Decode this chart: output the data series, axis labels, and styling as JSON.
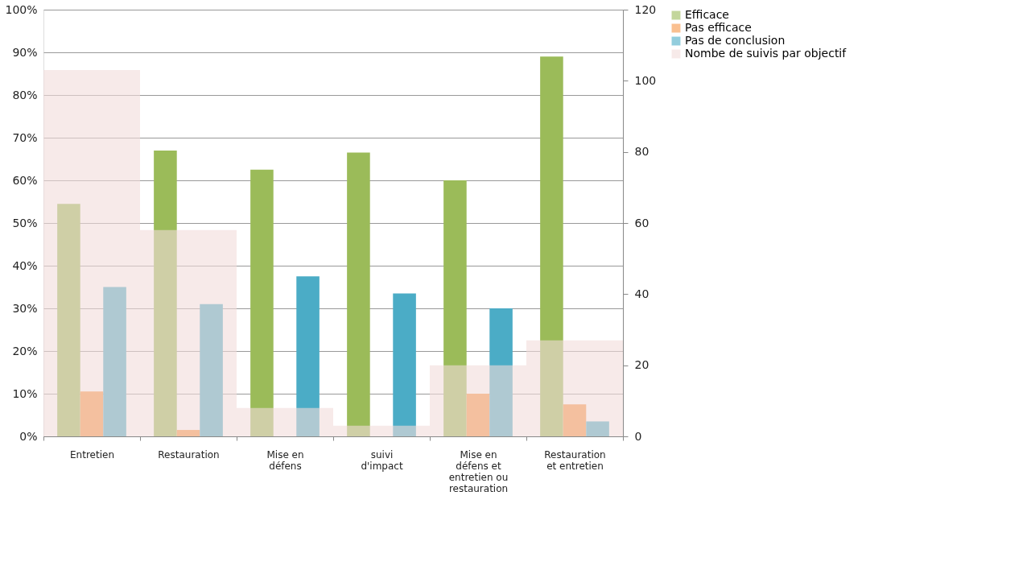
{
  "chart_data": {
    "type": "bar",
    "categories": [
      "Entretien",
      "Restauration",
      "Mise en défens",
      "suivi d'impact",
      "Mise en défens et entretien ou restauration",
      "Restauration et entretien"
    ],
    "series": [
      {
        "name": "Efficace",
        "color": "#9bbb59",
        "values": [
          54.5,
          67,
          62.5,
          66.5,
          60,
          89
        ]
      },
      {
        "name": "Pas efficace",
        "color": "#f79646",
        "values": [
          10.5,
          1.5,
          null,
          null,
          10,
          7.5
        ]
      },
      {
        "name": "Pas de conclusion",
        "color": "#4bacc6",
        "values": [
          35,
          31,
          37.5,
          33.5,
          30,
          3.5
        ]
      },
      {
        "name": "Nombe de suivis par objectif",
        "color": "#f2dcdb",
        "axis": "y2",
        "values": [
          103,
          58,
          8,
          3,
          20,
          27
        ]
      }
    ],
    "ylim": [
      0,
      100
    ],
    "yticks": [
      {
        "value": 0,
        "label": "0%"
      },
      {
        "value": 10,
        "label": "10%"
      },
      {
        "value": 20,
        "label": "20%"
      },
      {
        "value": 30,
        "label": "30%"
      },
      {
        "value": 40,
        "label": "40%"
      },
      {
        "value": 50,
        "label": "50%"
      },
      {
        "value": 60,
        "label": "60%"
      },
      {
        "value": 70,
        "label": "70%"
      },
      {
        "value": 80,
        "label": "80%"
      },
      {
        "value": 90,
        "label": "90%"
      },
      {
        "value": 100,
        "label": "100%"
      }
    ],
    "y2lim": [
      0,
      120
    ],
    "y2ticks": [
      0,
      20,
      40,
      60,
      80,
      100,
      120
    ],
    "grid": "y",
    "legend": "right"
  }
}
